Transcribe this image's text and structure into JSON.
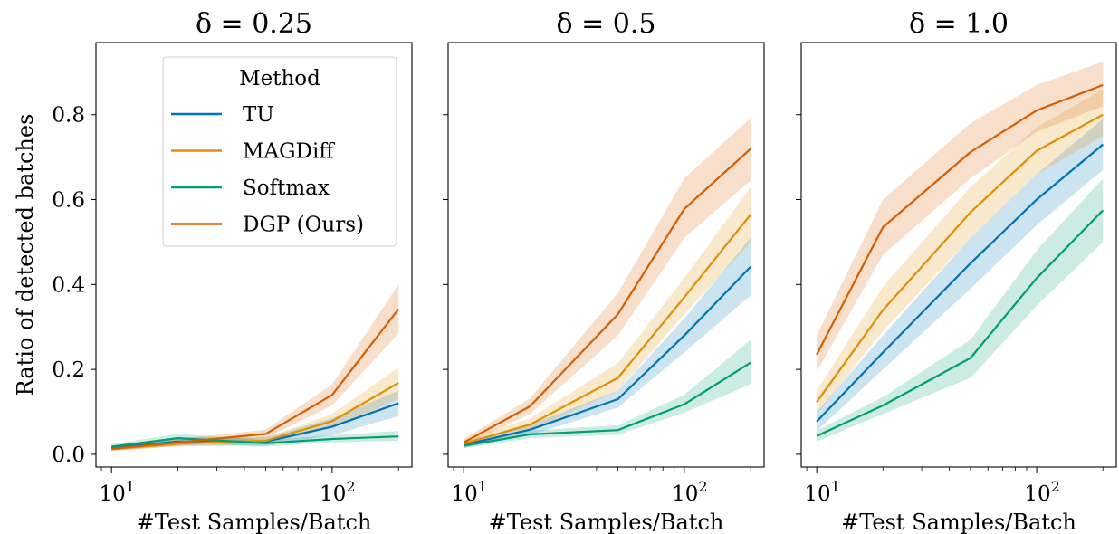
{
  "chart_data": [
    {
      "type": "line",
      "title": "δ = 0.25",
      "xlabel": "#Test Samples/Batch",
      "ylabel": "Ratio of detected batches",
      "xscale": "log",
      "xlim": [
        8.5,
        230
      ],
      "ylim": [
        -0.03,
        0.97
      ],
      "x": [
        10,
        20,
        50,
        100,
        200
      ],
      "x_tick_labels": [
        {
          "base": "10",
          "exp": "1",
          "value": 10
        },
        {
          "base": "10",
          "exp": "2",
          "value": 100
        }
      ],
      "y_ticks": [
        0.0,
        0.2,
        0.4,
        0.6,
        0.8
      ],
      "y_tick_labels": [
        "0.0",
        "0.2",
        "0.4",
        "0.6",
        "0.8"
      ],
      "show_legend": true,
      "series": [
        {
          "name": "TU",
          "color": "#0173b2",
          "values": [
            0.015,
            0.03,
            0.03,
            0.065,
            0.12
          ],
          "lower": [
            0.01,
            0.02,
            0.02,
            0.045,
            0.09
          ],
          "upper": [
            0.02,
            0.04,
            0.04,
            0.085,
            0.15
          ]
        },
        {
          "name": "MAGDiff",
          "color": "#de8f05",
          "values": [
            0.012,
            0.025,
            0.032,
            0.078,
            0.168
          ],
          "lower": [
            0.008,
            0.018,
            0.024,
            0.062,
            0.13
          ],
          "upper": [
            0.016,
            0.032,
            0.04,
            0.095,
            0.205
          ]
        },
        {
          "name": "Softmax",
          "color": "#029e73",
          "values": [
            0.018,
            0.038,
            0.026,
            0.036,
            0.042
          ],
          "lower": [
            0.012,
            0.028,
            0.018,
            0.028,
            0.032
          ],
          "upper": [
            0.024,
            0.048,
            0.034,
            0.045,
            0.055
          ]
        },
        {
          "name": "DGP (Ours)",
          "color": "#d55e00",
          "values": [
            0.013,
            0.028,
            0.048,
            0.14,
            0.342
          ],
          "lower": [
            0.008,
            0.02,
            0.038,
            0.115,
            0.285
          ],
          "upper": [
            0.018,
            0.036,
            0.058,
            0.165,
            0.4
          ]
        }
      ]
    },
    {
      "type": "line",
      "title": "δ = 0.5",
      "xlabel": "#Test Samples/Batch",
      "ylabel": "",
      "xscale": "log",
      "xlim": [
        8.5,
        230
      ],
      "ylim": [
        -0.03,
        0.97
      ],
      "x": [
        10,
        20,
        50,
        100,
        200
      ],
      "x_tick_labels": [
        {
          "base": "10",
          "exp": "1",
          "value": 10
        },
        {
          "base": "10",
          "exp": "2",
          "value": 100
        }
      ],
      "y_ticks": [
        0.0,
        0.2,
        0.4,
        0.6,
        0.8
      ],
      "y_tick_labels": [],
      "show_legend": false,
      "series": [
        {
          "name": "TU",
          "color": "#0173b2",
          "values": [
            0.022,
            0.058,
            0.13,
            0.28,
            0.442
          ],
          "lower": [
            0.015,
            0.045,
            0.11,
            0.24,
            0.375
          ],
          "upper": [
            0.029,
            0.07,
            0.15,
            0.32,
            0.51
          ]
        },
        {
          "name": "MAGDiff",
          "color": "#de8f05",
          "values": [
            0.025,
            0.07,
            0.18,
            0.37,
            0.565
          ],
          "lower": [
            0.018,
            0.055,
            0.15,
            0.33,
            0.5
          ],
          "upper": [
            0.032,
            0.085,
            0.215,
            0.415,
            0.63
          ]
        },
        {
          "name": "Softmax",
          "color": "#029e73",
          "values": [
            0.02,
            0.047,
            0.057,
            0.118,
            0.216
          ],
          "lower": [
            0.014,
            0.038,
            0.046,
            0.098,
            0.165
          ],
          "upper": [
            0.026,
            0.056,
            0.068,
            0.14,
            0.27
          ]
        },
        {
          "name": "DGP (Ours)",
          "color": "#d55e00",
          "values": [
            0.028,
            0.113,
            0.33,
            0.578,
            0.72
          ],
          "lower": [
            0.02,
            0.095,
            0.28,
            0.51,
            0.645
          ],
          "upper": [
            0.036,
            0.132,
            0.38,
            0.65,
            0.792
          ]
        }
      ]
    },
    {
      "type": "line",
      "title": "δ = 1.0",
      "xlabel": "#Test Samples/Batch",
      "ylabel": "",
      "xscale": "log",
      "xlim": [
        8.5,
        230
      ],
      "ylim": [
        -0.03,
        0.97
      ],
      "x": [
        10,
        20,
        50,
        100,
        200
      ],
      "x_tick_labels": [
        {
          "base": "10",
          "exp": "1",
          "value": 10
        },
        {
          "base": "10",
          "exp": "2",
          "value": 100
        }
      ],
      "y_ticks": [
        0.0,
        0.2,
        0.4,
        0.6,
        0.8
      ],
      "y_tick_labels": [],
      "show_legend": false,
      "series": [
        {
          "name": "TU",
          "color": "#0173b2",
          "values": [
            0.077,
            0.24,
            0.45,
            0.6,
            0.73
          ],
          "lower": [
            0.055,
            0.2,
            0.39,
            0.54,
            0.67
          ],
          "upper": [
            0.1,
            0.28,
            0.51,
            0.66,
            0.79
          ]
        },
        {
          "name": "MAGDiff",
          "color": "#de8f05",
          "values": [
            0.123,
            0.34,
            0.57,
            0.715,
            0.8
          ],
          "lower": [
            0.095,
            0.29,
            0.51,
            0.66,
            0.75
          ],
          "upper": [
            0.15,
            0.395,
            0.63,
            0.77,
            0.86
          ]
        },
        {
          "name": "Softmax",
          "color": "#029e73",
          "values": [
            0.043,
            0.115,
            0.227,
            0.415,
            0.575
          ],
          "lower": [
            0.03,
            0.095,
            0.18,
            0.35,
            0.5
          ],
          "upper": [
            0.056,
            0.135,
            0.27,
            0.48,
            0.65
          ]
        },
        {
          "name": "DGP (Ours)",
          "color": "#d55e00",
          "values": [
            0.235,
            0.535,
            0.712,
            0.81,
            0.87
          ],
          "lower": [
            0.195,
            0.47,
            0.65,
            0.76,
            0.82
          ],
          "upper": [
            0.28,
            0.6,
            0.78,
            0.87,
            0.925
          ]
        }
      ]
    }
  ],
  "legend": {
    "title": "Method",
    "location": "upper-right of first panel"
  }
}
